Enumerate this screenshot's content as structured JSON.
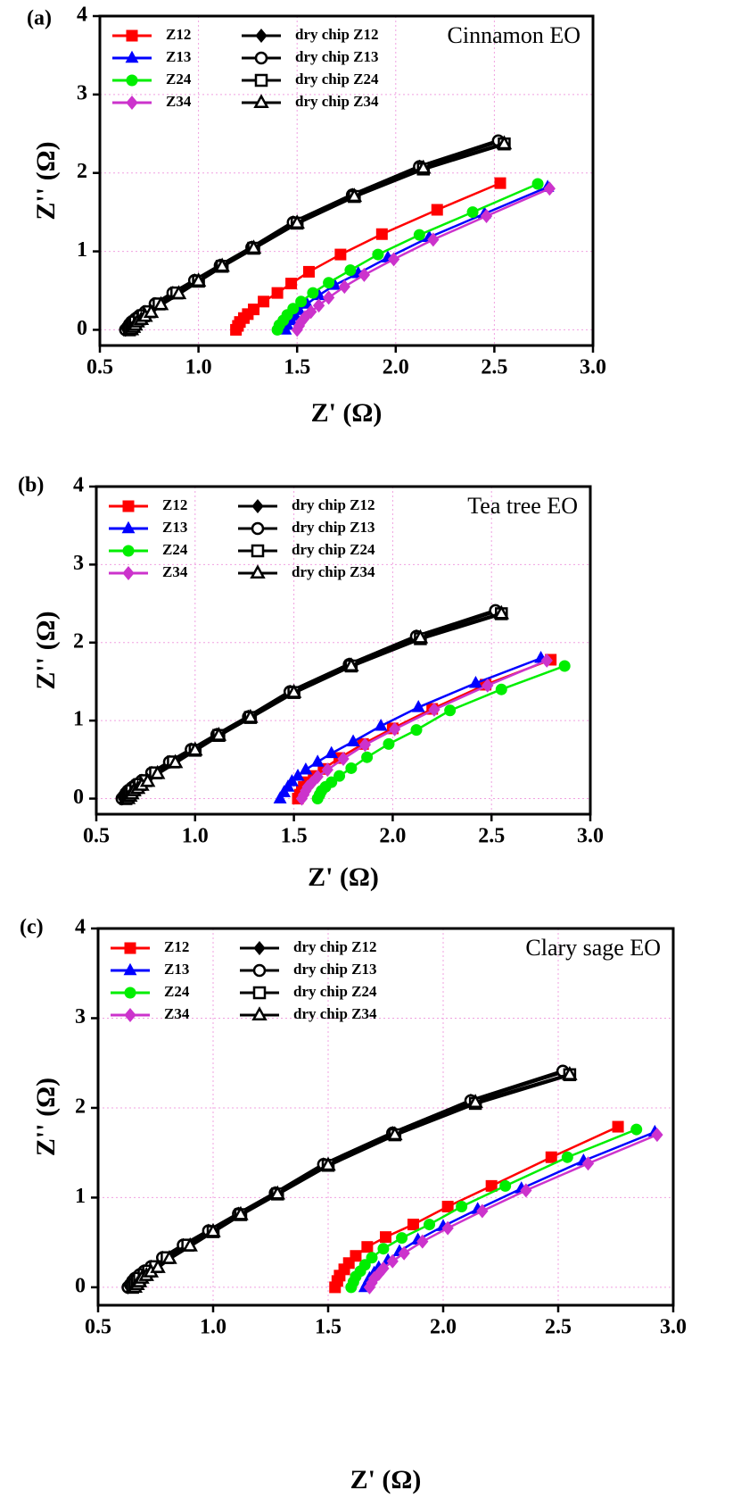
{
  "chart_data": [
    {
      "type": "scatter",
      "panel_label": "(a)",
      "annotation": "Cinnamon  EO",
      "xlabel": "Z' (Ω)",
      "ylabel": "Z'' (Ω)",
      "grid": true,
      "xlim": [
        0.5,
        3.0
      ],
      "ylim": [
        -0.2,
        4
      ],
      "xticks": [
        {
          "value": 0.5,
          "label": "0.5"
        },
        {
          "value": 1,
          "label": "1.0"
        },
        {
          "value": 1.5,
          "label": "1.5"
        },
        {
          "value": 2,
          "label": "2.0"
        },
        {
          "value": 2.5,
          "label": "2.5"
        },
        {
          "value": 3,
          "label": "3.0"
        }
      ],
      "yticks": [
        0,
        1,
        2,
        3,
        4
      ],
      "series": [
        {
          "name": "Z12",
          "color": "#ff0000",
          "marker": "square",
          "filled": true,
          "x": [
            1.19,
            1.2,
            1.21,
            1.23,
            1.25,
            1.28,
            1.33,
            1.4,
            1.47,
            1.56,
            1.72,
            1.93,
            2.21,
            2.53
          ],
          "values": [
            0,
            0.05,
            0.1,
            0.15,
            0.2,
            0.26,
            0.36,
            0.47,
            0.59,
            0.74,
            0.96,
            1.22,
            1.53,
            1.87
          ]
        },
        {
          "name": "Z13",
          "color": "#0000ff",
          "marker": "triangle",
          "filled": true,
          "x": [
            1.44,
            1.45,
            1.47,
            1.49,
            1.51,
            1.55,
            1.61,
            1.69,
            1.81,
            1.96,
            2.17,
            2.45,
            2.77
          ],
          "values": [
            0,
            0.06,
            0.12,
            0.18,
            0.25,
            0.33,
            0.44,
            0.57,
            0.72,
            0.92,
            1.18,
            1.48,
            1.82
          ]
        },
        {
          "name": "Z24",
          "color": "#00ee00",
          "marker": "circle",
          "filled": true,
          "x": [
            1.4,
            1.41,
            1.43,
            1.45,
            1.48,
            1.52,
            1.58,
            1.66,
            1.77,
            1.91,
            2.12,
            2.39,
            2.72
          ],
          "values": [
            0,
            0.06,
            0.12,
            0.19,
            0.27,
            0.36,
            0.47,
            0.6,
            0.76,
            0.96,
            1.21,
            1.5,
            1.86
          ]
        },
        {
          "name": "Z34",
          "color": "#cc33cc",
          "marker": "diamond",
          "filled": true,
          "x": [
            1.5,
            1.51,
            1.52,
            1.54,
            1.57,
            1.61,
            1.66,
            1.74,
            1.84,
            1.99,
            2.19,
            2.46,
            2.78
          ],
          "values": [
            0,
            0.05,
            0.1,
            0.16,
            0.23,
            0.31,
            0.41,
            0.55,
            0.7,
            0.9,
            1.15,
            1.45,
            1.8
          ]
        },
        {
          "name": "dry chip Z12",
          "color": "#000000",
          "marker": "diamond",
          "filled": true,
          "x": [
            0.63,
            0.64,
            0.65,
            0.66,
            0.68,
            0.7,
            0.73,
            0.78,
            0.87,
            0.98,
            1.11,
            1.27,
            1.48,
            1.78,
            2.12,
            2.52
          ],
          "values": [
            0,
            0.03,
            0.07,
            0.1,
            0.14,
            0.18,
            0.23,
            0.33,
            0.47,
            0.63,
            0.82,
            1.05,
            1.37,
            1.72,
            2.08,
            2.4
          ]
        },
        {
          "name": "dry chip Z13",
          "color": "#000000",
          "marker": "circle",
          "filled": false,
          "x": [
            0.63,
            0.64,
            0.65,
            0.66,
            0.68,
            0.7,
            0.73,
            0.78,
            0.87,
            0.98,
            1.11,
            1.27,
            1.48,
            1.78,
            2.12,
            2.52
          ],
          "values": [
            0,
            0.03,
            0.07,
            0.1,
            0.14,
            0.18,
            0.23,
            0.33,
            0.47,
            0.63,
            0.82,
            1.05,
            1.37,
            1.72,
            2.08,
            2.41
          ]
        },
        {
          "name": "dry chip Z24",
          "color": "#000000",
          "marker": "square",
          "filled": false,
          "x": [
            0.65,
            0.66,
            0.67,
            0.68,
            0.7,
            0.72,
            0.75,
            0.8,
            0.89,
            1.0,
            1.12,
            1.28,
            1.5,
            1.79,
            2.14,
            2.55
          ],
          "values": [
            0,
            0.03,
            0.07,
            0.1,
            0.14,
            0.18,
            0.23,
            0.33,
            0.47,
            0.62,
            0.81,
            1.04,
            1.36,
            1.7,
            2.05,
            2.37
          ]
        },
        {
          "name": "dry chip Z34",
          "color": "#000000",
          "marker": "triangle",
          "filled": false,
          "x": [
            0.66,
            0.67,
            0.68,
            0.69,
            0.71,
            0.73,
            0.76,
            0.81,
            0.9,
            1.0,
            1.12,
            1.28,
            1.5,
            1.79,
            2.14,
            2.55
          ],
          "values": [
            0,
            0.03,
            0.06,
            0.1,
            0.13,
            0.17,
            0.22,
            0.32,
            0.46,
            0.62,
            0.81,
            1.04,
            1.36,
            1.7,
            2.06,
            2.37
          ]
        }
      ]
    },
    {
      "type": "scatter",
      "panel_label": "(b)",
      "annotation": "Tea tree EO",
      "xlabel": "Z' (Ω)",
      "ylabel": "Z'' (Ω)",
      "grid": true,
      "xlim": [
        0.5,
        3.0
      ],
      "ylim": [
        -0.2,
        4
      ],
      "xticks": [
        {
          "value": 0.5,
          "label": "0.5"
        },
        {
          "value": 1,
          "label": "1.0"
        },
        {
          "value": 1.5,
          "label": "1.5"
        },
        {
          "value": 2,
          "label": "2.0"
        },
        {
          "value": 2.5,
          "label": "2.5"
        },
        {
          "value": 3,
          "label": "3.0"
        }
      ],
      "yticks": [
        0,
        1,
        2,
        3,
        4
      ],
      "series": [
        {
          "name": "Z12",
          "color": "#ff0000",
          "marker": "square",
          "filled": true,
          "x": [
            1.52,
            1.53,
            1.54,
            1.55,
            1.57,
            1.6,
            1.65,
            1.73,
            1.85,
            2.0,
            2.2,
            2.47,
            2.8
          ],
          "values": [
            0,
            0.05,
            0.1,
            0.15,
            0.21,
            0.29,
            0.38,
            0.52,
            0.7,
            0.9,
            1.15,
            1.46,
            1.78
          ]
        },
        {
          "name": "Z13",
          "color": "#0000ff",
          "marker": "triangle",
          "filled": true,
          "x": [
            1.43,
            1.45,
            1.47,
            1.49,
            1.52,
            1.56,
            1.62,
            1.69,
            1.8,
            1.94,
            2.13,
            2.42,
            2.75
          ],
          "values": [
            0,
            0.08,
            0.15,
            0.22,
            0.29,
            0.37,
            0.47,
            0.58,
            0.73,
            0.93,
            1.17,
            1.48,
            1.8
          ]
        },
        {
          "name": "Z24",
          "color": "#00ee00",
          "marker": "circle",
          "filled": true,
          "x": [
            1.62,
            1.63,
            1.64,
            1.66,
            1.69,
            1.73,
            1.79,
            1.87,
            1.98,
            2.12,
            2.29,
            2.55,
            2.87
          ],
          "values": [
            0,
            0.05,
            0.1,
            0.15,
            0.21,
            0.29,
            0.39,
            0.53,
            0.7,
            0.88,
            1.13,
            1.4,
            1.7
          ]
        },
        {
          "name": "Z34",
          "color": "#cc33cc",
          "marker": "diamond",
          "filled": true,
          "x": [
            1.54,
            1.55,
            1.56,
            1.57,
            1.59,
            1.62,
            1.67,
            1.75,
            1.86,
            2.01,
            2.21,
            2.48,
            2.78
          ],
          "values": [
            0,
            0.05,
            0.1,
            0.15,
            0.2,
            0.28,
            0.37,
            0.51,
            0.69,
            0.89,
            1.14,
            1.45,
            1.77
          ]
        },
        {
          "name": "dry chip Z12",
          "color": "#000000",
          "marker": "diamond",
          "filled": true,
          "x": [
            0.63,
            0.64,
            0.65,
            0.66,
            0.68,
            0.7,
            0.73,
            0.78,
            0.87,
            0.98,
            1.11,
            1.27,
            1.48,
            1.78,
            2.12,
            2.52
          ],
          "values": [
            0,
            0.03,
            0.07,
            0.1,
            0.14,
            0.18,
            0.23,
            0.33,
            0.47,
            0.63,
            0.82,
            1.05,
            1.37,
            1.72,
            2.08,
            2.4
          ]
        },
        {
          "name": "dry chip Z13",
          "color": "#000000",
          "marker": "circle",
          "filled": false,
          "x": [
            0.63,
            0.64,
            0.65,
            0.66,
            0.68,
            0.7,
            0.73,
            0.78,
            0.87,
            0.98,
            1.11,
            1.27,
            1.48,
            1.78,
            2.12,
            2.52
          ],
          "values": [
            0,
            0.03,
            0.07,
            0.1,
            0.14,
            0.18,
            0.23,
            0.33,
            0.47,
            0.63,
            0.82,
            1.05,
            1.37,
            1.72,
            2.08,
            2.41
          ]
        },
        {
          "name": "dry chip Z24",
          "color": "#000000",
          "marker": "square",
          "filled": false,
          "x": [
            0.65,
            0.66,
            0.67,
            0.68,
            0.7,
            0.72,
            0.75,
            0.8,
            0.89,
            1.0,
            1.12,
            1.28,
            1.5,
            1.79,
            2.14,
            2.55
          ],
          "values": [
            0,
            0.03,
            0.07,
            0.1,
            0.14,
            0.18,
            0.23,
            0.33,
            0.47,
            0.62,
            0.81,
            1.04,
            1.36,
            1.7,
            2.05,
            2.37
          ]
        },
        {
          "name": "dry chip Z34",
          "color": "#000000",
          "marker": "triangle",
          "filled": false,
          "x": [
            0.66,
            0.67,
            0.68,
            0.69,
            0.71,
            0.73,
            0.76,
            0.81,
            0.9,
            1.0,
            1.12,
            1.28,
            1.5,
            1.79,
            2.14,
            2.55
          ],
          "values": [
            0,
            0.03,
            0.06,
            0.1,
            0.13,
            0.17,
            0.22,
            0.32,
            0.46,
            0.62,
            0.81,
            1.04,
            1.36,
            1.7,
            2.06,
            2.37
          ]
        }
      ]
    },
    {
      "type": "scatter",
      "panel_label": "(c)",
      "annotation": "Clary sage EO",
      "xlabel": "Z' (Ω)",
      "ylabel": "Z'' (Ω)",
      "grid": true,
      "xlim": [
        0.5,
        3.0
      ],
      "ylim": [
        -0.2,
        4
      ],
      "xticks": [
        {
          "value": 0.5,
          "label": "0.5"
        },
        {
          "value": 1,
          "label": "1.0"
        },
        {
          "value": 1.5,
          "label": "1.5"
        },
        {
          "value": 2,
          "label": "2.0"
        },
        {
          "value": 2.5,
          "label": "2.5"
        },
        {
          "value": 3,
          "label": "3.0"
        }
      ],
      "yticks": [
        0,
        1,
        2,
        3,
        4
      ],
      "series": [
        {
          "name": "Z12",
          "color": "#ff0000",
          "marker": "square",
          "filled": true,
          "x": [
            1.53,
            1.54,
            1.55,
            1.57,
            1.59,
            1.62,
            1.67,
            1.75,
            1.87,
            2.02,
            2.21,
            2.47,
            2.76
          ],
          "values": [
            0,
            0.07,
            0.13,
            0.2,
            0.27,
            0.35,
            0.45,
            0.56,
            0.7,
            0.9,
            1.13,
            1.45,
            1.79
          ]
        },
        {
          "name": "Z13",
          "color": "#0000ff",
          "marker": "triangle",
          "filled": true,
          "x": [
            1.66,
            1.67,
            1.68,
            1.7,
            1.72,
            1.76,
            1.81,
            1.89,
            2.0,
            2.15,
            2.34,
            2.61,
            2.92
          ],
          "values": [
            0,
            0.05,
            0.1,
            0.16,
            0.22,
            0.3,
            0.4,
            0.53,
            0.68,
            0.87,
            1.1,
            1.41,
            1.73
          ]
        },
        {
          "name": "Z24",
          "color": "#00ee00",
          "marker": "circle",
          "filled": true,
          "x": [
            1.6,
            1.61,
            1.62,
            1.64,
            1.66,
            1.69,
            1.74,
            1.82,
            1.94,
            2.08,
            2.27,
            2.54,
            2.84
          ],
          "values": [
            0,
            0.06,
            0.12,
            0.18,
            0.25,
            0.33,
            0.43,
            0.55,
            0.7,
            0.9,
            1.13,
            1.45,
            1.76
          ]
        },
        {
          "name": "Z34",
          "color": "#cc33cc",
          "marker": "diamond",
          "filled": true,
          "x": [
            1.68,
            1.69,
            1.7,
            1.72,
            1.74,
            1.78,
            1.83,
            1.91,
            2.02,
            2.17,
            2.36,
            2.63,
            2.93
          ],
          "values": [
            0,
            0.05,
            0.1,
            0.15,
            0.21,
            0.29,
            0.38,
            0.51,
            0.66,
            0.85,
            1.08,
            1.38,
            1.7
          ]
        },
        {
          "name": "dry chip Z12",
          "color": "#000000",
          "marker": "diamond",
          "filled": true,
          "x": [
            0.63,
            0.64,
            0.65,
            0.66,
            0.68,
            0.7,
            0.73,
            0.78,
            0.87,
            0.98,
            1.11,
            1.27,
            1.48,
            1.78,
            2.12,
            2.52
          ],
          "values": [
            0,
            0.03,
            0.07,
            0.1,
            0.14,
            0.18,
            0.23,
            0.33,
            0.47,
            0.63,
            0.82,
            1.05,
            1.37,
            1.72,
            2.08,
            2.4
          ]
        },
        {
          "name": "dry chip Z13",
          "color": "#000000",
          "marker": "circle",
          "filled": false,
          "x": [
            0.63,
            0.64,
            0.65,
            0.66,
            0.68,
            0.7,
            0.73,
            0.78,
            0.87,
            0.98,
            1.11,
            1.27,
            1.48,
            1.78,
            2.12,
            2.52
          ],
          "values": [
            0,
            0.03,
            0.07,
            0.1,
            0.14,
            0.18,
            0.23,
            0.33,
            0.47,
            0.63,
            0.82,
            1.05,
            1.37,
            1.72,
            2.08,
            2.41
          ]
        },
        {
          "name": "dry chip Z24",
          "color": "#000000",
          "marker": "square",
          "filled": false,
          "x": [
            0.65,
            0.66,
            0.67,
            0.68,
            0.7,
            0.72,
            0.75,
            0.8,
            0.89,
            1.0,
            1.12,
            1.28,
            1.5,
            1.79,
            2.14,
            2.55
          ],
          "values": [
            0,
            0.03,
            0.07,
            0.1,
            0.14,
            0.18,
            0.23,
            0.33,
            0.47,
            0.62,
            0.81,
            1.04,
            1.36,
            1.7,
            2.05,
            2.37
          ]
        },
        {
          "name": "dry chip Z34",
          "color": "#000000",
          "marker": "triangle",
          "filled": false,
          "x": [
            0.66,
            0.67,
            0.68,
            0.69,
            0.71,
            0.73,
            0.76,
            0.81,
            0.9,
            1.0,
            1.12,
            1.28,
            1.5,
            1.79,
            2.14,
            2.55
          ],
          "values": [
            0,
            0.03,
            0.06,
            0.1,
            0.13,
            0.17,
            0.22,
            0.32,
            0.46,
            0.62,
            0.81,
            1.04,
            1.36,
            1.7,
            2.06,
            2.37
          ]
        }
      ]
    }
  ]
}
